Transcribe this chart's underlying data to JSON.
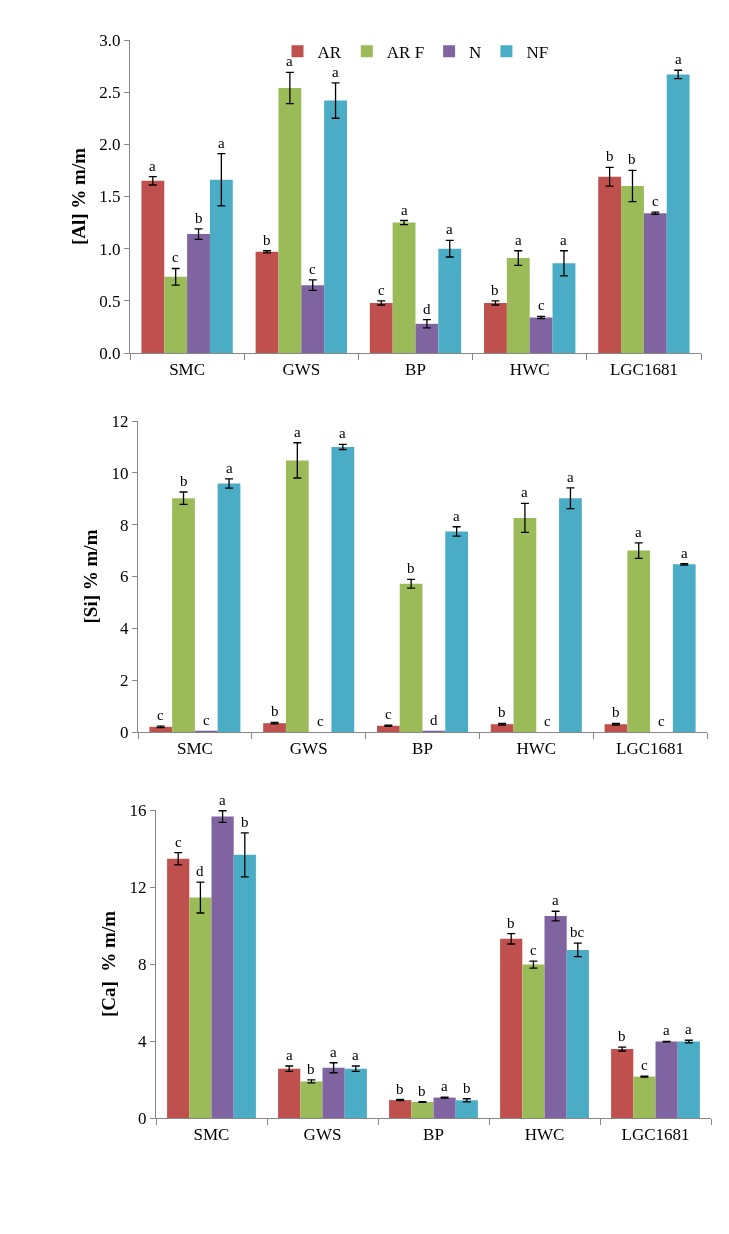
{
  "chart_data": [
    {
      "type": "bar",
      "ylabel": "[Al] % m/m",
      "categories": [
        "SMC",
        "GWS",
        "BP",
        "HWC",
        "LGC1681"
      ],
      "ylim": [
        0,
        3
      ],
      "yticks": [
        {
          "value": 0,
          "label": "0.0"
        },
        {
          "value": 0.5,
          "label": "0.5"
        },
        {
          "value": 1,
          "label": "1.0"
        },
        {
          "value": 1.5,
          "label": "1.5"
        },
        {
          "value": 2,
          "label": "2.0"
        },
        {
          "value": 2.5,
          "label": "2.5"
        },
        {
          "value": 3,
          "label": "3.0"
        }
      ],
      "grid": false,
      "legend": "top",
      "series": [
        {
          "name": "AR",
          "color": "#c0504d",
          "values": [
            1.65,
            0.97,
            0.48,
            0.48,
            1.69
          ],
          "errors": [
            0.04,
            0.01,
            0.02,
            0.02,
            0.09
          ],
          "value_labels": [
            "a",
            "b",
            "c",
            "b",
            "b"
          ]
        },
        {
          "name": "AR F",
          "color": "#9bbb59",
          "values": [
            0.73,
            2.54,
            1.25,
            0.91,
            1.6
          ],
          "errors": [
            0.08,
            0.15,
            0.02,
            0.07,
            0.15
          ],
          "value_labels": [
            "c",
            "a",
            "a",
            "a",
            "b"
          ]
        },
        {
          "name": "N",
          "color": "#8064a2",
          "values": [
            1.14,
            0.65,
            0.28,
            0.34,
            1.34
          ],
          "errors": [
            0.05,
            0.05,
            0.04,
            0.01,
            0.01
          ],
          "value_labels": [
            "b",
            "c",
            "d",
            "c",
            "c"
          ]
        },
        {
          "name": "NF",
          "color": "#4bacc6",
          "values": [
            1.66,
            2.42,
            1.0,
            0.86,
            2.67
          ],
          "errors": [
            0.25,
            0.17,
            0.08,
            0.12,
            0.04
          ],
          "value_labels": [
            "a",
            "a",
            "a",
            "a",
            "a"
          ]
        }
      ]
    },
    {
      "type": "bar",
      "ylabel": "[Si] % m/m",
      "categories": [
        "SMC",
        "GWS",
        "BP",
        "HWC",
        "LGC1681"
      ],
      "ylim": [
        0,
        12
      ],
      "yticks": [
        0,
        2,
        4,
        6,
        8,
        10,
        12
      ],
      "grid": false,
      "legend": false,
      "series": [
        {
          "color": "#c0504d",
          "values": [
            0.2,
            0.34,
            0.24,
            0.3,
            0.3
          ],
          "errors": [
            0.03,
            0.03,
            0.02,
            0.03,
            0.03
          ],
          "value_labels": [
            "c",
            "b",
            "c",
            "b",
            "b"
          ]
        },
        {
          "color": "#9bbb59",
          "values": [
            9.02,
            10.48,
            5.72,
            8.26,
            7.0
          ],
          "errors": [
            0.24,
            0.68,
            0.17,
            0.56,
            0.3
          ],
          "value_labels": [
            "b",
            "a",
            "b",
            "a",
            "a"
          ]
        },
        {
          "color": "#8064a2",
          "values": [
            0.05,
            0,
            0.05,
            0,
            0
          ],
          "value_labels": [
            "c",
            "c",
            "d",
            "c",
            "c"
          ]
        },
        {
          "color": "#4bacc6",
          "values": [
            9.59,
            11.0,
            7.74,
            9.02,
            6.47
          ],
          "errors": [
            0.18,
            0.1,
            0.18,
            0.4,
            0.03
          ],
          "value_labels": [
            "a",
            "a",
            "a",
            "a",
            "a"
          ]
        }
      ]
    },
    {
      "type": "bar",
      "ylabel": "[Ca]  % m/m",
      "categories": [
        "SMC",
        "GWS",
        "BP",
        "HWC",
        "LGC1681"
      ],
      "ylim": [
        0,
        16
      ],
      "yticks": [
        0,
        4,
        8,
        12,
        16
      ],
      "grid": false,
      "legend": false,
      "series": [
        {
          "color": "#c0504d",
          "values": [
            13.47,
            2.56,
            0.93,
            9.31,
            3.58
          ],
          "errors": [
            0.32,
            0.14,
            0.03,
            0.27,
            0.1
          ],
          "value_labels": [
            "c",
            "a",
            "b",
            "b",
            "b"
          ]
        },
        {
          "color": "#9bbb59",
          "values": [
            11.45,
            1.9,
            0.83,
            7.97,
            2.15
          ],
          "errors": [
            0.8,
            0.08,
            0.02,
            0.18,
            0.02
          ],
          "value_labels": [
            "d",
            "b",
            "b",
            "c",
            "c"
          ]
        },
        {
          "color": "#8064a2",
          "values": [
            15.66,
            2.61,
            1.06,
            10.49,
            3.97
          ],
          "errors": [
            0.3,
            0.26,
            0.02,
            0.25,
            0.01
          ],
          "value_labels": [
            "a",
            "a",
            "a",
            "a",
            "a"
          ]
        },
        {
          "color": "#4bacc6",
          "values": [
            13.67,
            2.56,
            0.92,
            8.73,
            3.97
          ],
          "errors": [
            1.14,
            0.14,
            0.08,
            0.35,
            0.07
          ],
          "value_labels": [
            "b",
            "a",
            "b",
            "bc",
            "a"
          ]
        }
      ]
    }
  ]
}
